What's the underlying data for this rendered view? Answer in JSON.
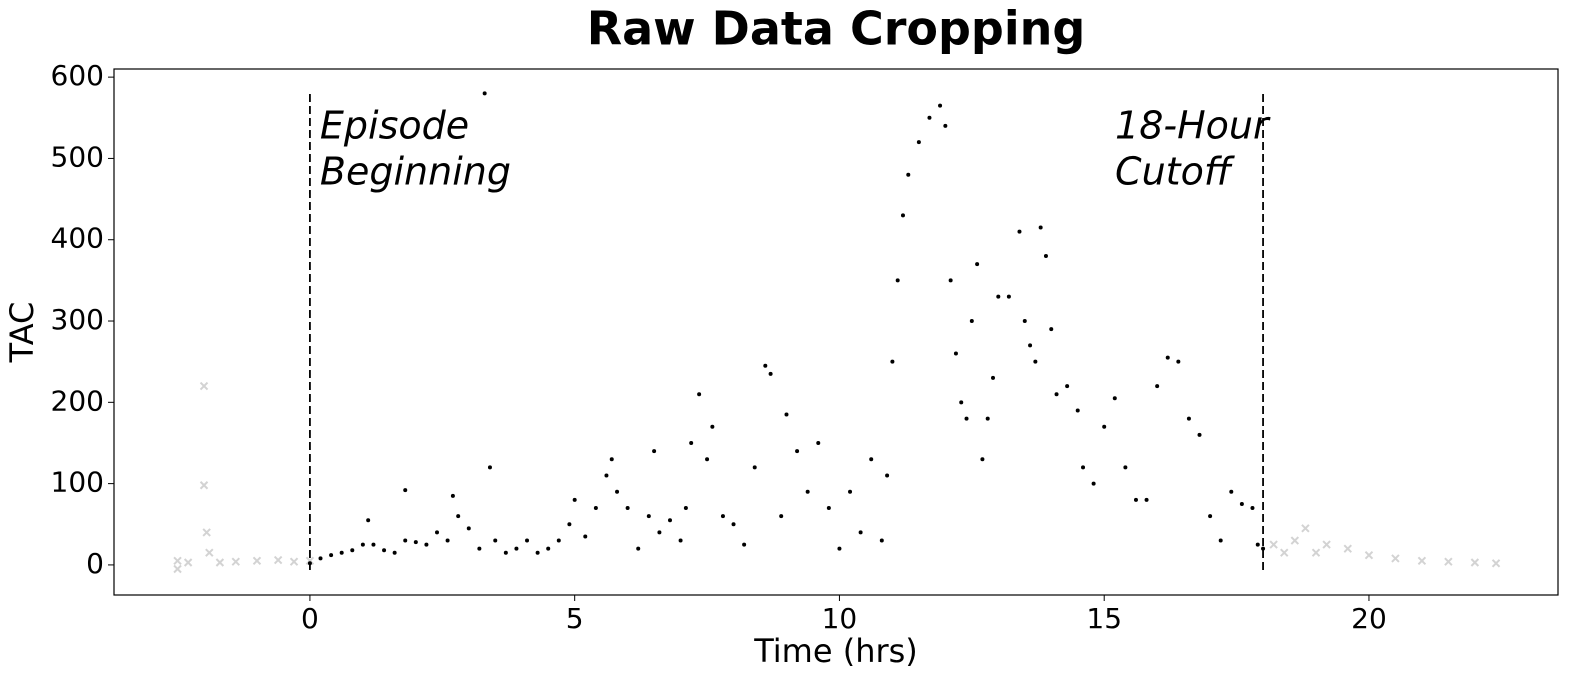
{
  "chart_data": {
    "type": "scatter",
    "title": "Raw Data Cropping",
    "x_label": "Time (hrs)",
    "y_label": "TAC",
    "xlim": [
      -3.7,
      23.57
    ],
    "ylim": [
      -37,
      610
    ],
    "xticks": [
      0,
      5,
      10,
      15,
      20
    ],
    "yticks": [
      0,
      100,
      200,
      300,
      400,
      500,
      600
    ],
    "vlines": [
      0,
      18
    ],
    "annotations": [
      [
        "Episode",
        "Beginning"
      ],
      [
        "18-Hour",
        "Cutoff"
      ]
    ],
    "series": [
      {
        "color": "#d3d3d3",
        "marker": "x",
        "x": [
          -2.5,
          -2.5,
          -2.3,
          -2.0,
          -2.0,
          -1.95,
          -1.9,
          -1.7,
          -1.4,
          -1.0,
          -0.6,
          -0.3,
          0,
          18.2,
          18.4,
          18.6,
          18.8,
          19.0,
          19.2,
          19.6,
          20.0,
          20.5,
          21.0,
          21.5,
          22.0,
          22.4
        ],
        "values": [
          5,
          -5,
          3,
          220,
          98,
          40,
          15,
          3,
          4,
          5,
          6,
          4,
          5,
          25,
          15,
          30,
          45,
          15,
          25,
          20,
          12,
          8,
          5,
          4,
          3,
          2
        ]
      },
      {
        "color": "#000000",
        "marker": "o",
        "x": [
          0,
          0.2,
          0.4,
          0.6,
          0.8,
          1.0,
          1.1,
          1.2,
          1.4,
          1.6,
          1.8,
          1.8,
          2.0,
          2.2,
          2.4,
          2.6,
          2.7,
          2.8,
          3.0,
          3.2,
          3.3,
          3.4,
          3.5,
          3.7,
          3.9,
          4.1,
          4.3,
          4.5,
          4.7,
          4.9,
          5.0,
          5.2,
          5.4,
          5.6,
          5.7,
          5.8,
          6.0,
          6.2,
          6.4,
          6.5,
          6.6,
          6.8,
          7.0,
          7.1,
          7.2,
          7.35,
          7.5,
          7.6,
          7.8,
          8.0,
          8.2,
          8.4,
          8.6,
          8.7,
          8.9,
          9.0,
          9.2,
          9.4,
          9.6,
          9.8,
          10.0,
          10.2,
          10.4,
          10.6,
          10.8,
          10.9,
          11.0,
          11.1,
          11.2,
          11.3,
          11.5,
          11.7,
          11.9,
          12.0,
          12.1,
          12.2,
          12.3,
          12.4,
          12.5,
          12.6,
          12.7,
          12.8,
          12.9,
          13.0,
          13.2,
          13.4,
          13.5,
          13.6,
          13.7,
          13.8,
          13.9,
          14.0,
          14.1,
          14.3,
          14.5,
          14.6,
          14.8,
          15.0,
          15.2,
          15.4,
          15.6,
          15.8,
          16.0,
          16.2,
          16.4,
          16.6,
          16.8,
          17.0,
          17.2,
          17.4,
          17.6,
          17.8,
          17.9,
          18.0
        ],
        "values": [
          2,
          8,
          12,
          15,
          18,
          25,
          55,
          25,
          18,
          15,
          30,
          92,
          28,
          25,
          40,
          30,
          85,
          60,
          45,
          20,
          580,
          120,
          30,
          15,
          20,
          30,
          15,
          20,
          30,
          50,
          80,
          35,
          70,
          110,
          130,
          90,
          70,
          20,
          60,
          140,
          40,
          55,
          30,
          70,
          150,
          210,
          130,
          170,
          60,
          50,
          25,
          120,
          245,
          235,
          60,
          185,
          140,
          90,
          150,
          70,
          20,
          90,
          40,
          130,
          30,
          110,
          250,
          350,
          430,
          480,
          520,
          550,
          565,
          540,
          350,
          260,
          200,
          180,
          300,
          370,
          130,
          180,
          230,
          330,
          330,
          410,
          300,
          270,
          250,
          415,
          380,
          290,
          210,
          220,
          190,
          120,
          100,
          170,
          205,
          120,
          80,
          80,
          220,
          255,
          250,
          180,
          160,
          60,
          30,
          90,
          75,
          70,
          25,
          20
        ]
      }
    ]
  }
}
